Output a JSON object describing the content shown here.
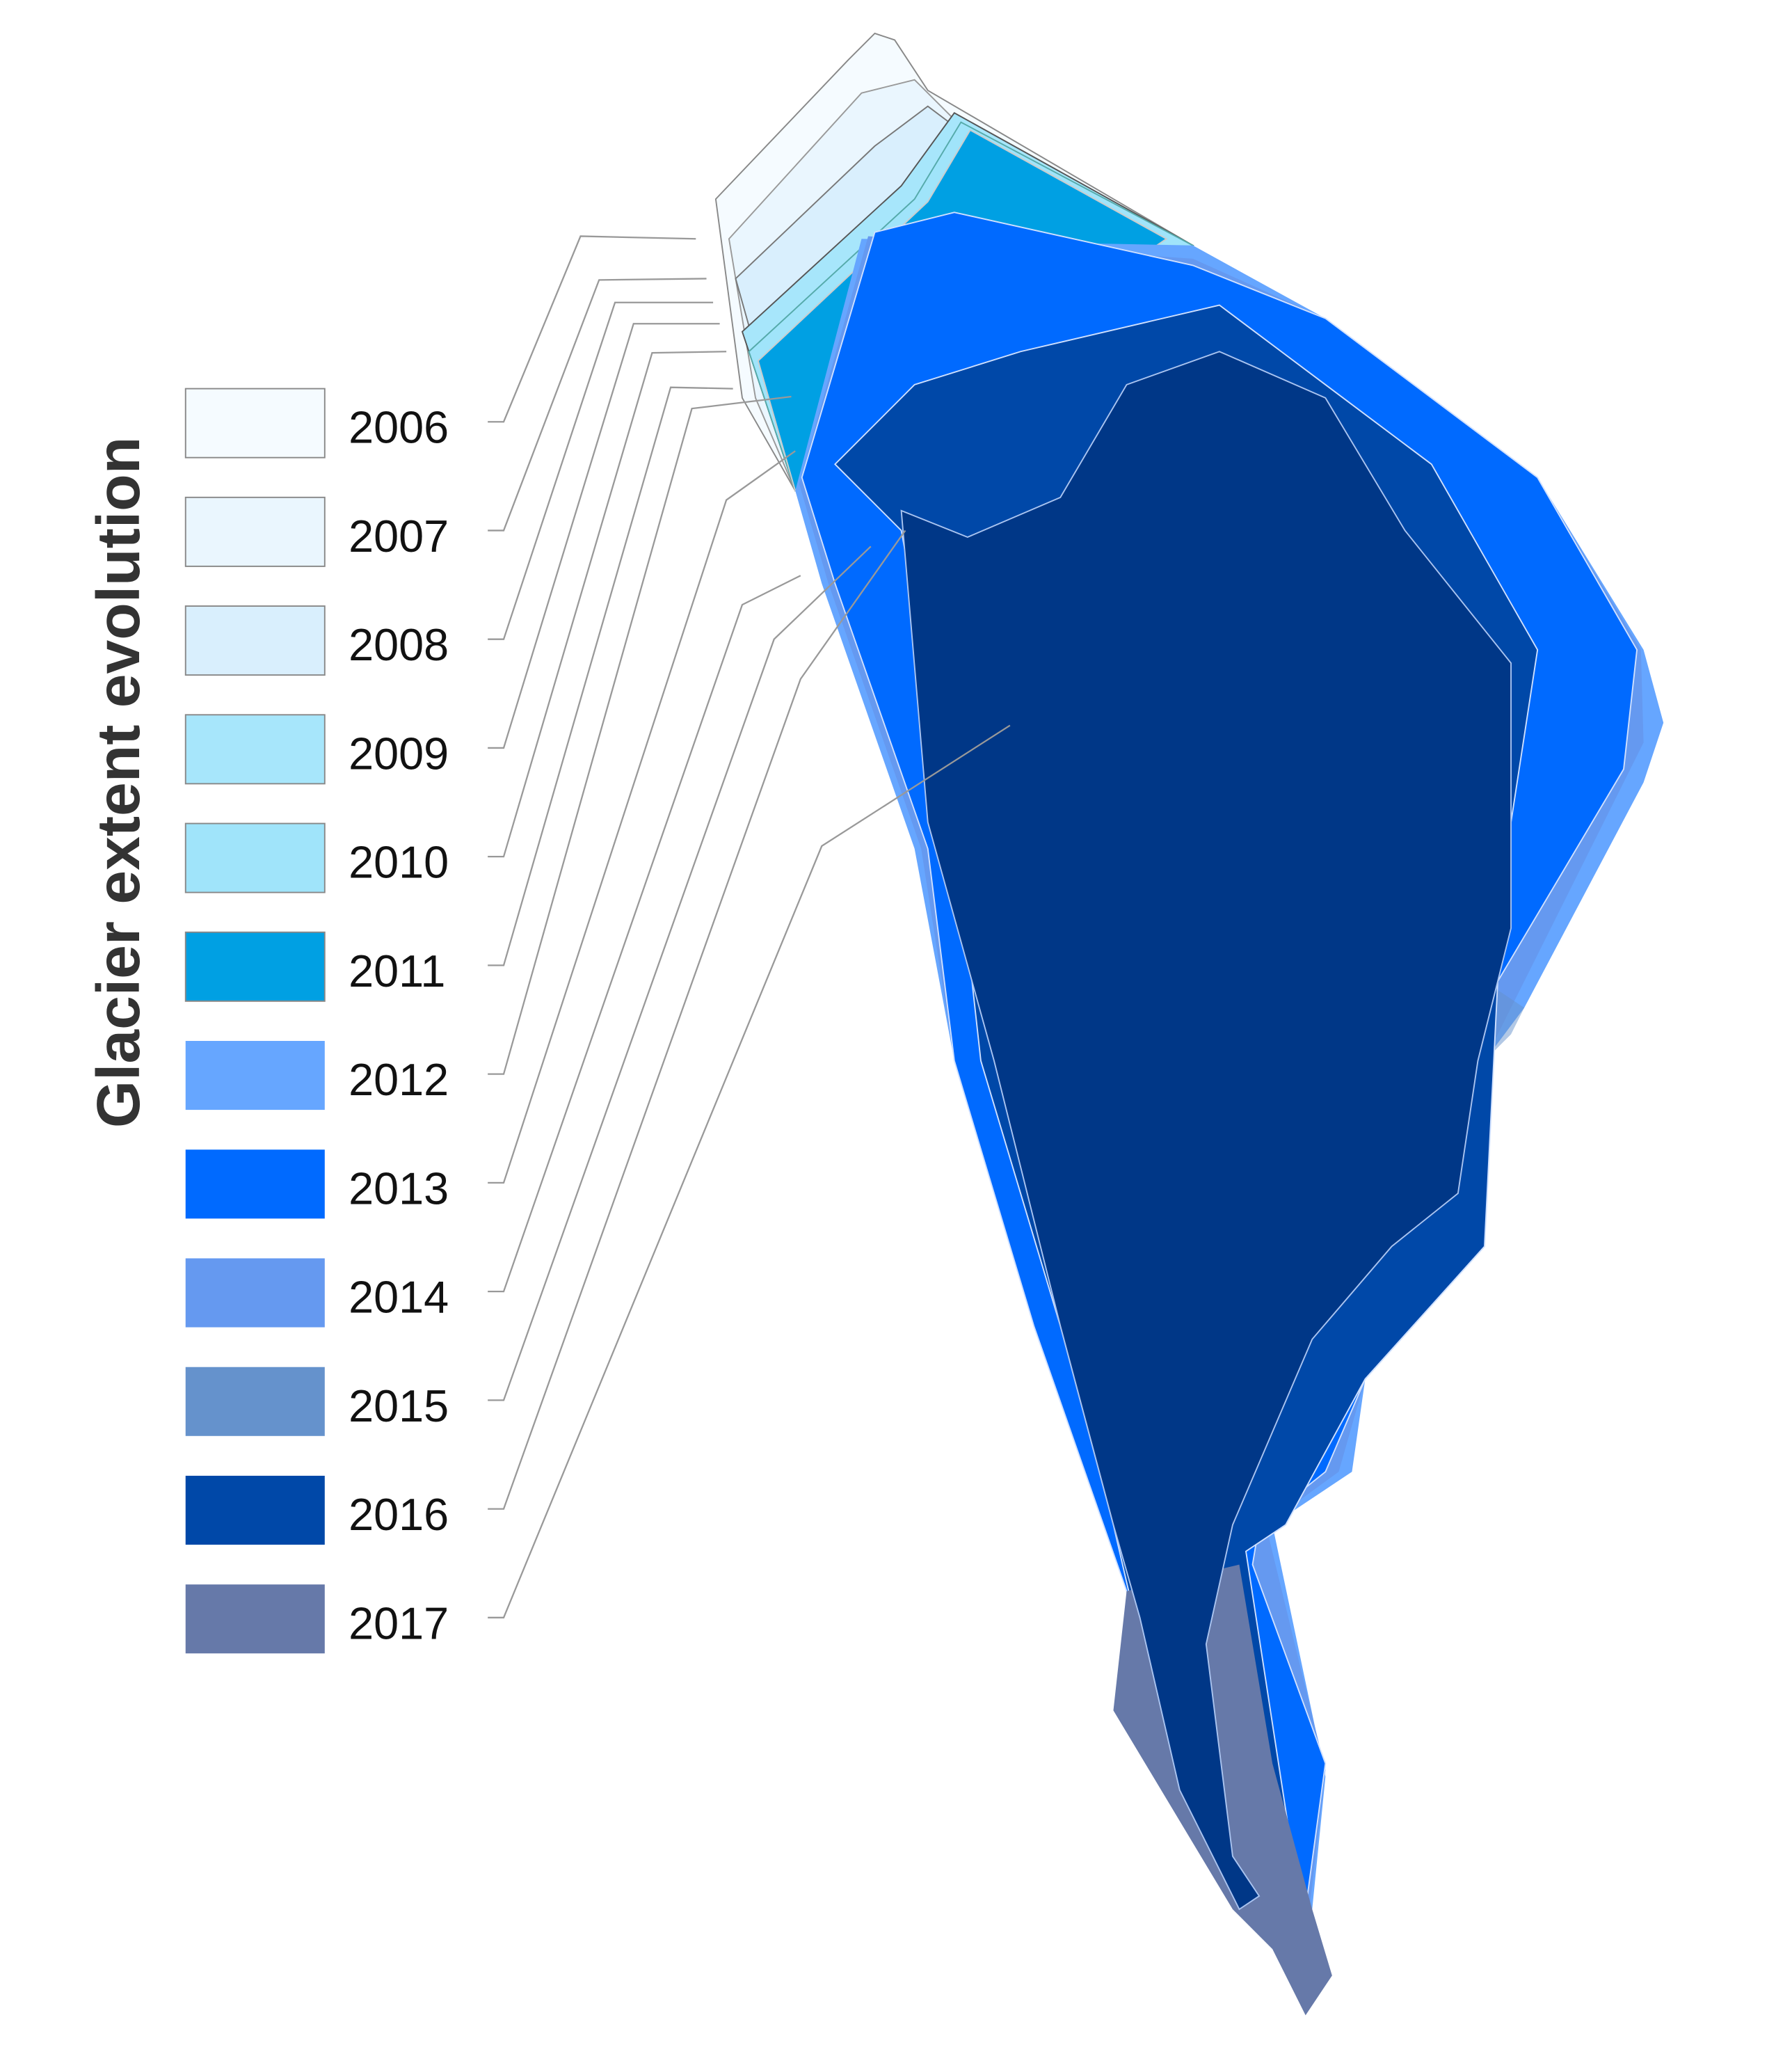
{
  "title": "Glacier extent evolution",
  "legend": {
    "items": [
      {
        "year": "2006",
        "color": "#f5fbff"
      },
      {
        "year": "2007",
        "color": "#eaf6fe"
      },
      {
        "year": "2008",
        "color": "#d9effd"
      },
      {
        "year": "2009",
        "color": "#a7e6fb"
      },
      {
        "year": "2010",
        "color": "#a0e4fa"
      },
      {
        "year": "2011",
        "color": "#00a0e3"
      },
      {
        "year": "2012",
        "color": "#66a6ff"
      },
      {
        "year": "2013",
        "color": "#006aff"
      },
      {
        "year": "2014",
        "color": "#6599f0"
      },
      {
        "year": "2015",
        "color": "#6592cc"
      },
      {
        "year": "2016",
        "color": "#0048a8"
      },
      {
        "year": "2017",
        "color": "#6679a9"
      }
    ]
  }
}
